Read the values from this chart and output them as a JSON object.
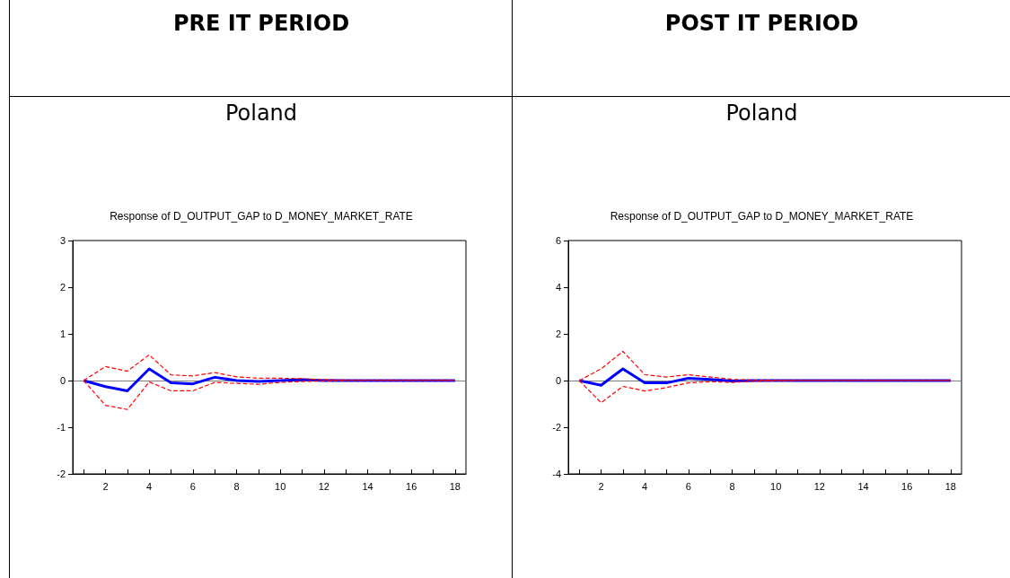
{
  "chart_data": [
    {
      "type": "line",
      "title": "Response of D_OUTPUT_GAP to D_MONEY_MARKET_RATE",
      "annotations": [
        "PRE IT PERIOD",
        "Poland"
      ],
      "x": [
        1,
        2,
        3,
        4,
        5,
        6,
        7,
        8,
        9,
        10,
        11,
        12,
        13,
        14,
        15,
        16,
        17,
        18
      ],
      "series": [
        {
          "color": "#0000ff",
          "line_style": "solid",
          "values": [
            0,
            -0.13,
            -0.22,
            0.25,
            -0.05,
            -0.07,
            0.07,
            0.0,
            -0.02,
            0.0,
            0.02,
            0.0,
            0,
            0,
            0,
            0,
            0,
            0
          ]
        },
        {
          "color": "#ff0000",
          "line_style": "dashed",
          "values": [
            0,
            0.3,
            0.2,
            0.55,
            0.12,
            0.1,
            0.17,
            0.08,
            0.05,
            0.05,
            0.04,
            0.02,
            0.01,
            0.01,
            0.01,
            0.01,
            0.01,
            0.01
          ]
        },
        {
          "color": "#ff0000",
          "line_style": "dashed",
          "values": [
            0,
            -0.53,
            -0.62,
            -0.03,
            -0.22,
            -0.22,
            -0.04,
            -0.06,
            -0.08,
            -0.04,
            -0.02,
            -0.01,
            0,
            0,
            0,
            0,
            0,
            0
          ]
        }
      ],
      "xlim": [
        0.5,
        18.5
      ],
      "xticks": [
        {
          "value": 1,
          "label": null
        },
        2,
        {
          "value": 3,
          "label": null
        },
        4,
        {
          "value": 5,
          "label": null
        },
        6,
        {
          "value": 7,
          "label": null
        },
        8,
        {
          "value": 9,
          "label": null
        },
        10,
        {
          "value": 11,
          "label": null
        },
        12,
        {
          "value": 13,
          "label": null
        },
        14,
        {
          "value": 15,
          "label": null
        },
        16,
        {
          "value": 17,
          "label": null
        },
        18
      ],
      "ylim": [
        -2,
        3
      ],
      "yticks": [
        -2,
        -1,
        0,
        1,
        2,
        3
      ],
      "ref_lines": [
        {
          "axis": "y",
          "value": 0,
          "color": "#808080"
        }
      ],
      "grid": false,
      "marker": "none"
    },
    {
      "type": "line",
      "title": "Response of D_OUTPUT_GAP to D_MONEY_MARKET_RATE",
      "annotations": [
        "POST IT PERIOD",
        "Poland"
      ],
      "x": [
        1,
        2,
        3,
        4,
        5,
        6,
        7,
        8,
        9,
        10,
        11,
        12,
        13,
        14,
        15,
        16,
        17,
        18
      ],
      "series": [
        {
          "color": "#0000ff",
          "line_style": "solid",
          "values": [
            0,
            -0.2,
            0.5,
            -0.1,
            -0.1,
            0.1,
            0.05,
            -0.02,
            0,
            0,
            0,
            0,
            0,
            0,
            0,
            0,
            0,
            0
          ]
        },
        {
          "color": "#ff0000",
          "line_style": "dashed",
          "values": [
            0,
            0.5,
            1.25,
            0.25,
            0.15,
            0.25,
            0.15,
            0.05,
            0.02,
            0.01,
            0.01,
            0.01,
            0.01,
            0.01,
            0.01,
            0.01,
            0.01,
            0.01
          ]
        },
        {
          "color": "#ff0000",
          "line_style": "dashed",
          "values": [
            0,
            -0.95,
            -0.25,
            -0.45,
            -0.3,
            -0.1,
            -0.05,
            -0.08,
            -0.03,
            -0.01,
            0,
            0,
            0,
            0,
            0,
            0,
            0,
            0
          ]
        }
      ],
      "xlim": [
        0.5,
        18.5
      ],
      "xticks": [
        {
          "value": 1,
          "label": null
        },
        2,
        {
          "value": 3,
          "label": null
        },
        4,
        {
          "value": 5,
          "label": null
        },
        6,
        {
          "value": 7,
          "label": null
        },
        8,
        {
          "value": 9,
          "label": null
        },
        10,
        {
          "value": 11,
          "label": null
        },
        12,
        {
          "value": 13,
          "label": null
        },
        14,
        {
          "value": 15,
          "label": null
        },
        16,
        {
          "value": 17,
          "label": null
        },
        18
      ],
      "ylim": [
        -4,
        6
      ],
      "yticks": [
        -4,
        -2,
        0,
        2,
        4,
        6
      ],
      "ref_lines": [
        {
          "axis": "y",
          "value": 0,
          "color": "#808080"
        }
      ],
      "grid": false,
      "marker": "none"
    }
  ]
}
